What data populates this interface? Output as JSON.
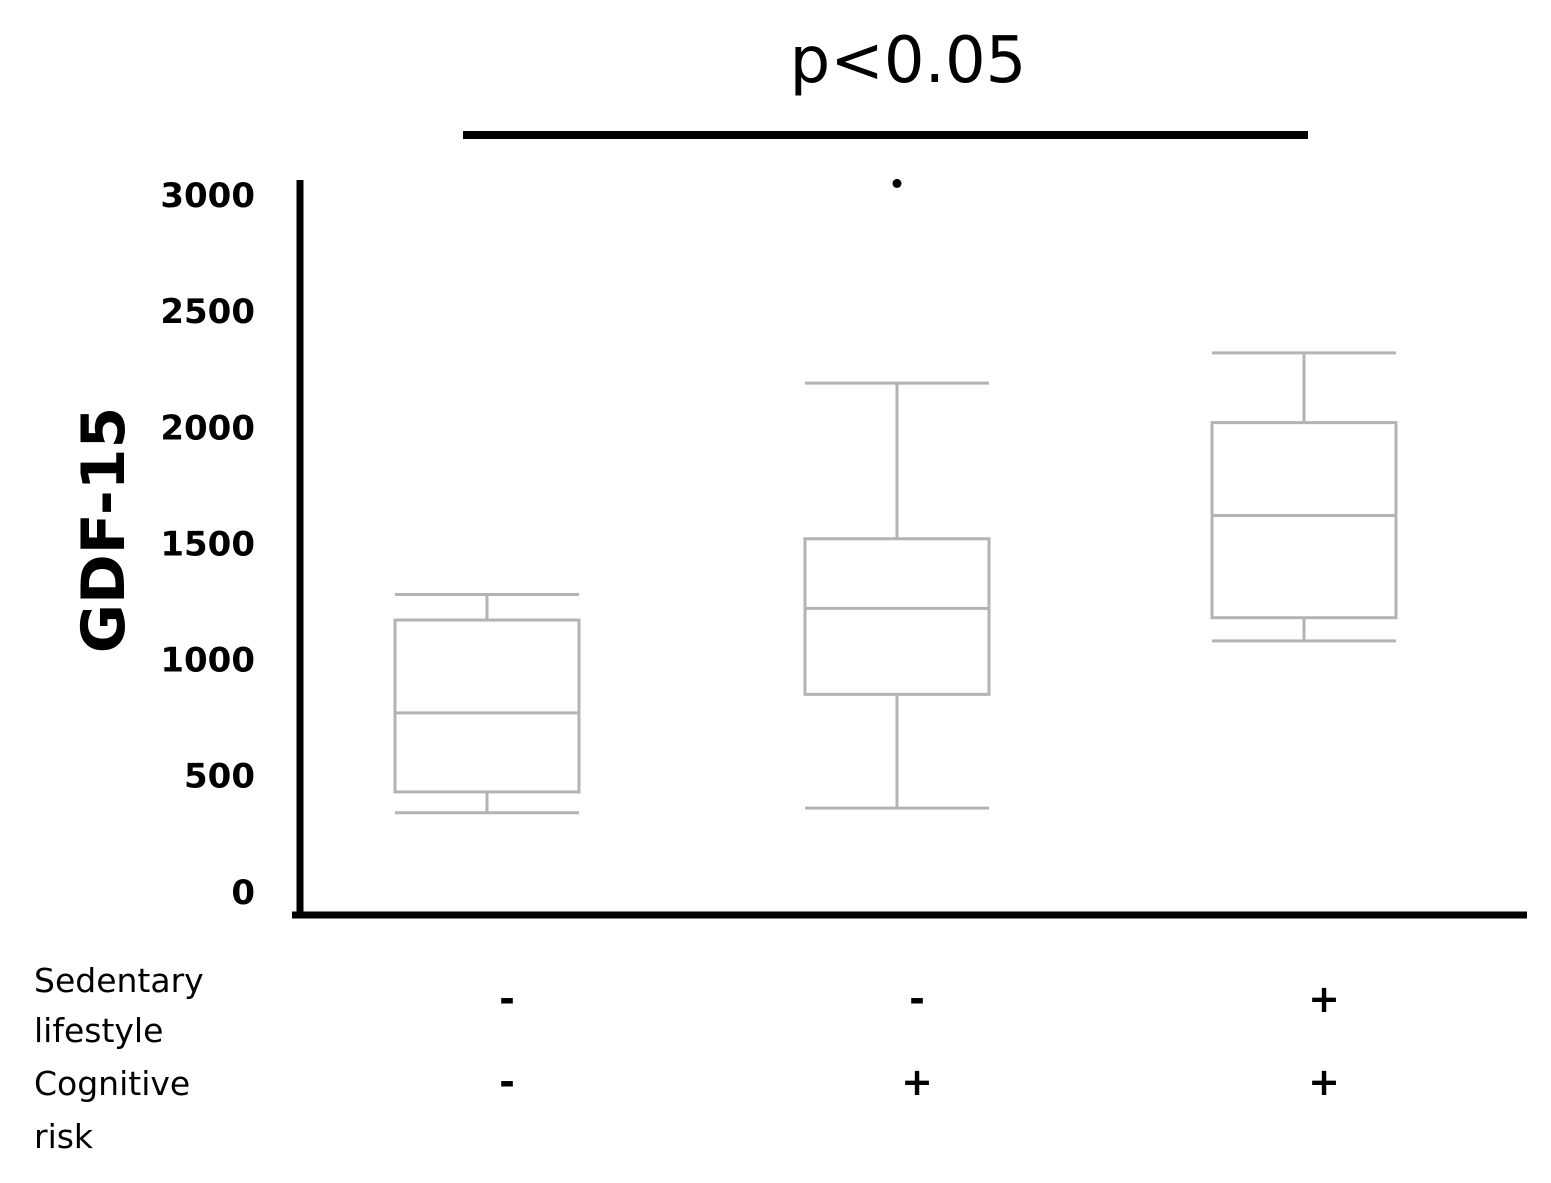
{
  "chart_data": {
    "type": "box",
    "ylabel": "GDF-15",
    "yticks": [
      0,
      500,
      1000,
      1500,
      2000,
      2500,
      3000
    ],
    "ylim": [
      -100,
      3000
    ],
    "significance": {
      "label": "p<0.05",
      "from_group": 0,
      "to_group": 2
    },
    "row_labels": [
      {
        "lines": [
          "Sedentary",
          "lifestyle"
        ]
      },
      {
        "lines": [
          "Cognitive",
          "risk"
        ]
      }
    ],
    "groups": [
      {
        "signs": [
          "-",
          "-"
        ],
        "min": 340,
        "q1": 430,
        "median": 770,
        "q3": 1170,
        "max": 1280,
        "outliers": []
      },
      {
        "signs": [
          "-",
          "+"
        ],
        "min": 360,
        "q1": 850,
        "median": 1220,
        "q3": 1520,
        "max": 2190,
        "outliers": [
          3050
        ]
      },
      {
        "signs": [
          "+",
          "+"
        ],
        "min": 1080,
        "q1": 1180,
        "median": 1620,
        "q3": 2020,
        "max": 2320,
        "outliers": []
      }
    ],
    "grid": false,
    "colors": {
      "box": "#b3b3b3",
      "axis": "#000000"
    }
  }
}
